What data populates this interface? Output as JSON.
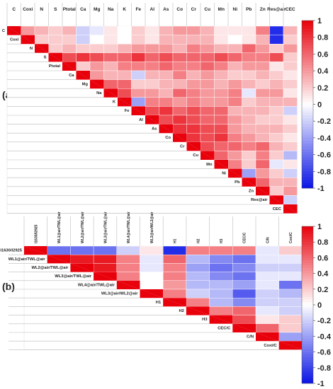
{
  "panels": [
    {
      "id": "a",
      "panel_label": "(a)",
      "col_labels": [
        "C",
        "Coxi",
        "N",
        "S",
        "Ptotal",
        "Ca",
        "Mg",
        "Na",
        "K",
        "Fe",
        "Al",
        "As",
        "Co",
        "Cr",
        "Cu",
        "Mn",
        "Ni",
        "Pb",
        "Zn",
        "Res@air",
        "CEC"
      ],
      "row_labels": [
        "C",
        "Coxi",
        "N",
        "S",
        "Ptotal",
        "Ca",
        "Mg",
        "Na",
        "K",
        "Fe",
        "Al",
        "As",
        "Co",
        "Cr",
        "Cu",
        "Mn",
        "Ni",
        "Pb",
        "Zn",
        "Res@air",
        "CEC"
      ],
      "colorbar_ticks": [
        "1",
        "0.8",
        "0.6",
        "0.4",
        "0.2",
        "0",
        "-0.2",
        "-0.4",
        "-0.6",
        "-0.8",
        "-1"
      ]
    },
    {
      "id": "b",
      "panel_label": "(b)",
      "col_labels": [
        "I1630/I2925",
        "WL1@air/TWL@air",
        "WL2@air/TWL@air",
        "WL3@air/TWL@air",
        "WL4@air/TWL@air",
        "WL3@air/WL2@air",
        "H1",
        "H2",
        "H3",
        "CEC/C",
        "C/N",
        "Coxi/C"
      ],
      "row_labels": [
        "I1630/I2925",
        "WL1@air/TWL@air",
        "WL2@air/TWL@air",
        "WL3@air/TWL@air",
        "WL4@air/TWL@air",
        "WL3@air/WL2@air",
        "H1",
        "H2",
        "H3",
        "CEC/C",
        "C/N",
        "Coxi/C"
      ],
      "colorbar_ticks": [
        "1",
        "0.8",
        "0.6",
        "0.4",
        "0.2",
        "0",
        "-0.2",
        "-0.4",
        "-0.6",
        "-0.8",
        "-1"
      ]
    }
  ],
  "colors": {
    "positive": "#e8000b",
    "neutral": "#ffffff",
    "negative": "#0a14e6",
    "diagonal": "#e8000b",
    "grid_line": "#bbbbbb"
  },
  "chart_data": [
    {
      "type": "heatmap",
      "title": "",
      "panel": "(a)",
      "layout": "upper-triangle",
      "variables": [
        "C",
        "Coxi",
        "N",
        "S",
        "Ptotal",
        "Ca",
        "Mg",
        "Na",
        "K",
        "Fe",
        "Al",
        "As",
        "Co",
        "Cr",
        "Cu",
        "Mn",
        "Ni",
        "Pb",
        "Zn",
        "Res@air",
        "CEC"
      ],
      "color_range": [
        -1,
        1
      ],
      "colorbar_ticks": [
        1,
        0.8,
        0.6,
        0.4,
        0.2,
        0,
        -0.2,
        -0.4,
        -0.6,
        -0.8,
        -1
      ],
      "correlations": [
        [
          1.0,
          0.4,
          0.3,
          0.2,
          0.3,
          -0.2,
          -0.1,
          0.1,
          0.0,
          0.2,
          0.1,
          0.3,
          0.4,
          0.4,
          0.3,
          0.1,
          0.1,
          0.1,
          0.5,
          -0.9,
          0.3
        ],
        [
          0.4,
          1.0,
          0.2,
          0.2,
          0.2,
          -0.2,
          0.0,
          0.1,
          0.0,
          0.2,
          0.1,
          0.3,
          0.3,
          0.3,
          0.3,
          0.1,
          0.0,
          0.1,
          0.3,
          -0.9,
          0.2
        ],
        [
          0.3,
          0.2,
          1.0,
          0.2,
          0.3,
          0.2,
          0.2,
          0.2,
          0.3,
          0.4,
          0.4,
          0.4,
          0.3,
          0.5,
          0.4,
          0.3,
          0.3,
          0.6,
          0.4,
          0.2,
          0.4
        ],
        [
          0.2,
          0.2,
          0.2,
          1.0,
          0.7,
          0.8,
          0.7,
          0.6,
          0.6,
          0.8,
          0.6,
          0.7,
          0.6,
          0.6,
          0.6,
          0.7,
          0.6,
          0.5,
          0.5,
          0.7,
          0.2
        ],
        [
          0.3,
          0.2,
          0.3,
          0.7,
          1.0,
          0.2,
          0.4,
          0.3,
          0.5,
          0.5,
          0.5,
          0.6,
          0.5,
          0.5,
          0.6,
          0.5,
          0.3,
          0.4,
          0.4,
          0.1,
          0.2
        ],
        [
          -0.2,
          -0.2,
          0.2,
          0.8,
          0.2,
          1.0,
          0.4,
          0.3,
          0.3,
          -0.2,
          0.3,
          0.3,
          0.5,
          0.3,
          0.4,
          0.3,
          0.2,
          0.2,
          0.3,
          0.2,
          0.1
        ],
        [
          -0.1,
          0.0,
          0.2,
          0.7,
          0.4,
          0.4,
          1.0,
          0.6,
          0.6,
          0.2,
          0.2,
          0.3,
          0.3,
          0.4,
          0.4,
          0.3,
          0.4,
          0.3,
          0.2,
          0.3,
          0.2
        ],
        [
          0.1,
          0.1,
          0.2,
          0.6,
          0.3,
          0.3,
          0.6,
          1.0,
          0.7,
          0.4,
          0.4,
          0.3,
          0.6,
          0.5,
          0.4,
          0.4,
          0.5,
          -0.1,
          0.4,
          0.4,
          0.1
        ],
        [
          0.0,
          0.0,
          0.3,
          0.6,
          0.5,
          0.3,
          0.6,
          0.7,
          1.0,
          -0.4,
          0.5,
          0.5,
          0.4,
          0.5,
          0.4,
          0.4,
          0.5,
          0.2,
          0.3,
          0.3,
          0.3
        ],
        [
          0.2,
          0.2,
          0.4,
          0.8,
          0.5,
          -0.2,
          0.2,
          0.4,
          -0.4,
          1.0,
          0.7,
          0.8,
          0.6,
          0.7,
          0.6,
          0.6,
          0.3,
          0.3,
          0.3,
          0.2,
          -0.2
        ],
        [
          0.1,
          0.1,
          0.4,
          0.6,
          0.5,
          0.3,
          0.2,
          0.4,
          0.5,
          0.7,
          1.0,
          0.7,
          0.8,
          0.7,
          0.6,
          0.6,
          0.4,
          0.3,
          0.2,
          0.2,
          0.1
        ],
        [
          0.3,
          0.3,
          0.4,
          0.7,
          0.6,
          0.3,
          0.3,
          0.3,
          0.5,
          0.8,
          0.7,
          1.0,
          0.8,
          0.8,
          0.7,
          0.7,
          0.4,
          0.3,
          0.3,
          0.3,
          0.2
        ],
        [
          0.4,
          0.3,
          0.3,
          0.6,
          0.5,
          0.5,
          0.3,
          0.6,
          0.4,
          0.6,
          0.8,
          0.8,
          1.0,
          0.8,
          0.7,
          0.8,
          0.5,
          0.4,
          0.3,
          0.2,
          0.1
        ],
        [
          0.4,
          0.3,
          0.5,
          0.6,
          0.5,
          0.3,
          0.4,
          0.5,
          0.5,
          0.7,
          0.7,
          0.8,
          0.8,
          1.0,
          0.7,
          0.6,
          0.6,
          0.5,
          0.6,
          0.3,
          0.2
        ],
        [
          0.3,
          0.3,
          0.4,
          0.6,
          0.6,
          0.4,
          0.4,
          0.4,
          0.4,
          0.6,
          0.6,
          0.7,
          0.7,
          0.7,
          1.0,
          0.6,
          0.4,
          0.2,
          0.5,
          0.2,
          -0.3
        ],
        [
          0.1,
          0.1,
          0.3,
          0.7,
          0.5,
          0.3,
          0.3,
          0.4,
          0.4,
          0.6,
          0.6,
          0.7,
          0.8,
          0.6,
          0.6,
          1.0,
          0.5,
          0.2,
          0.6,
          -0.1,
          0.1
        ],
        [
          0.1,
          0.0,
          0.3,
          0.6,
          0.3,
          0.2,
          0.4,
          0.5,
          0.5,
          0.3,
          0.4,
          0.4,
          0.5,
          0.6,
          0.4,
          0.5,
          1.0,
          -0.4,
          0.4,
          0.2,
          -0.2
        ],
        [
          0.1,
          0.1,
          0.6,
          0.5,
          0.4,
          0.2,
          0.3,
          -0.1,
          0.2,
          0.3,
          0.3,
          0.3,
          0.4,
          0.5,
          0.2,
          0.2,
          -0.4,
          1.0,
          0.6,
          0.3,
          0.3
        ],
        [
          0.5,
          0.3,
          0.4,
          0.5,
          0.4,
          0.3,
          0.2,
          0.4,
          0.3,
          0.3,
          0.2,
          0.3,
          0.3,
          0.6,
          0.5,
          0.6,
          0.4,
          0.6,
          1.0,
          0.2,
          0.4
        ],
        [
          -0.9,
          -0.9,
          0.2,
          0.7,
          0.1,
          0.2,
          0.3,
          0.4,
          0.3,
          0.2,
          0.2,
          0.3,
          0.2,
          0.3,
          0.2,
          -0.1,
          0.2,
          0.3,
          0.2,
          1.0,
          -0.2
        ],
        [
          0.3,
          0.2,
          0.4,
          0.2,
          0.2,
          0.1,
          0.2,
          0.1,
          0.3,
          -0.2,
          0.1,
          0.2,
          0.1,
          0.2,
          -0.3,
          0.1,
          -0.2,
          0.3,
          0.4,
          -0.2,
          1.0
        ]
      ]
    },
    {
      "type": "heatmap",
      "title": "",
      "panel": "(b)",
      "layout": "upper-triangle",
      "variables": [
        "I1630/I2925",
        "WL1@air/TWL@air",
        "WL2@air/TWL@air",
        "WL3@air/TWL@air",
        "WL4@air/TWL@air",
        "WL3@air/WL2@air",
        "H1",
        "H2",
        "H3",
        "CEC/C",
        "C/N",
        "Coxi/C"
      ],
      "color_range": [
        -1,
        1
      ],
      "colorbar_ticks": [
        1,
        0.8,
        0.6,
        0.4,
        0.2,
        0,
        -0.2,
        -0.4,
        -0.6,
        -0.8,
        -1
      ],
      "correlations": [
        [
          1.0,
          -0.6,
          -0.6,
          -0.6,
          -0.2,
          0.1,
          -0.9,
          0.5,
          0.5,
          0.5,
          -0.1,
          0.2
        ],
        [
          -0.6,
          1.0,
          0.9,
          0.9,
          0.5,
          -0.1,
          0.6,
          -0.3,
          -0.5,
          -0.6,
          -0.1,
          -0.1
        ],
        [
          -0.6,
          0.9,
          1.0,
          0.9,
          0.5,
          -0.1,
          0.5,
          -0.4,
          -0.6,
          -0.5,
          -0.2,
          -0.2
        ],
        [
          -0.6,
          0.9,
          0.9,
          1.0,
          0.5,
          0.0,
          0.5,
          -0.3,
          -0.5,
          -0.6,
          -0.1,
          -0.1
        ],
        [
          -0.2,
          0.5,
          0.5,
          0.5,
          1.0,
          0.0,
          0.4,
          -0.3,
          -0.3,
          -0.4,
          -0.1,
          -0.6
        ],
        [
          0.1,
          -0.1,
          -0.1,
          0.0,
          0.0,
          1.0,
          0.5,
          -0.2,
          -0.3,
          -0.7,
          -0.2,
          -0.3
        ],
        [
          -0.9,
          0.6,
          0.5,
          0.5,
          0.4,
          0.5,
          1.0,
          0.5,
          -0.3,
          -0.5,
          -0.2,
          -0.2
        ],
        [
          0.5,
          -0.3,
          -0.4,
          -0.3,
          -0.3,
          -0.2,
          0.5,
          1.0,
          0.5,
          0.6,
          -0.1,
          -0.2
        ],
        [
          0.5,
          -0.5,
          -0.6,
          -0.5,
          -0.3,
          -0.3,
          -0.3,
          0.5,
          1.0,
          0.7,
          0.1,
          0.2
        ],
        [
          0.5,
          -0.6,
          -0.5,
          -0.6,
          -0.4,
          -0.7,
          -0.5,
          0.6,
          0.7,
          1.0,
          0.6,
          0.2
        ],
        [
          -0.1,
          -0.1,
          -0.2,
          -0.1,
          -0.1,
          -0.2,
          -0.2,
          -0.1,
          0.1,
          0.6,
          1.0,
          -0.4
        ],
        [
          0.2,
          -0.1,
          -0.2,
          -0.1,
          -0.6,
          -0.3,
          -0.2,
          -0.2,
          0.2,
          0.2,
          -0.4,
          1.0
        ]
      ]
    }
  ]
}
